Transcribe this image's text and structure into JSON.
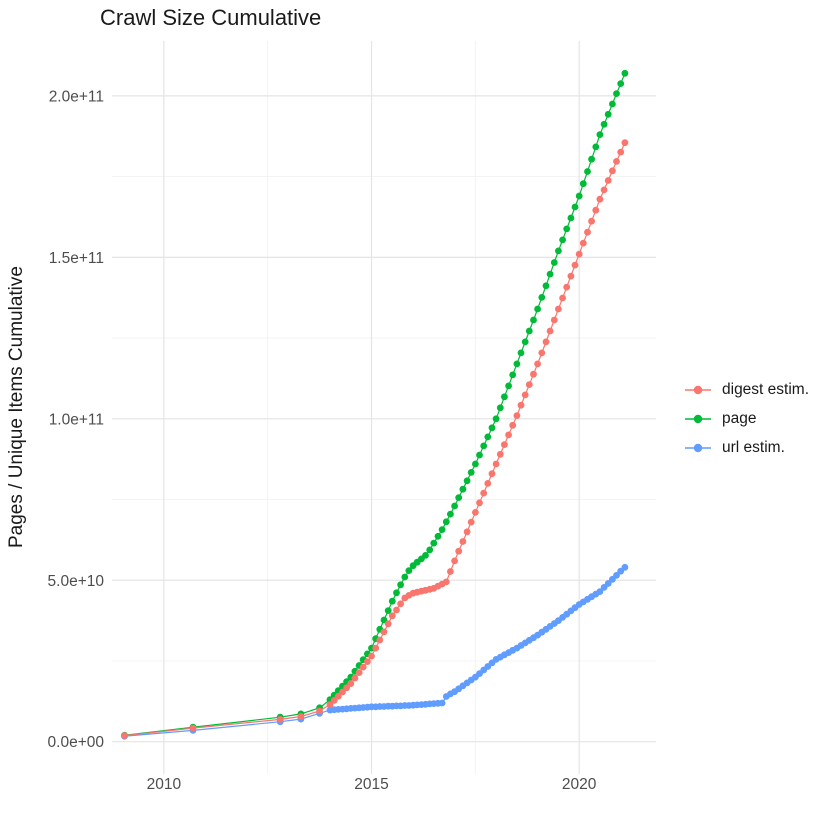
{
  "chart_data": {
    "type": "scatter",
    "title": "Crawl Size Cumulative",
    "xlabel": "",
    "ylabel": "Pages / Unique Items Cumulative",
    "value_unit_multiplier": 1000000000.0,
    "note_units": "y values stored in billions (1e9)",
    "xlim": [
      2008.75,
      2021.85
    ],
    "ylim_billions": [
      -10,
      217
    ],
    "grid": true,
    "legend_position": "right",
    "x_major_ticks": [
      2010,
      2015,
      2020
    ],
    "x_minor_ticks": [
      2012.5,
      2017.5
    ],
    "y_major_ticks": [
      {
        "v": 0,
        "label": "0.0e+00"
      },
      {
        "v": 50,
        "label": "5.0e+10"
      },
      {
        "v": 100,
        "label": "1.0e+11"
      },
      {
        "v": 150,
        "label": "1.5e+11"
      },
      {
        "v": 200,
        "label": "2.0e+11"
      }
    ],
    "y_minor_ticks_billions": [
      25,
      75,
      125,
      175
    ],
    "x": [
      2009.05,
      2010.7,
      2012.8,
      2013.3,
      2013.75,
      2014.0,
      2014.1,
      2014.2,
      2014.3,
      2014.4,
      2014.5,
      2014.6,
      2014.7,
      2014.8,
      2014.9,
      2015.0,
      2015.1,
      2015.2,
      2015.3,
      2015.4,
      2015.5,
      2015.6,
      2015.7,
      2015.8,
      2015.9,
      2016.0,
      2016.1,
      2016.2,
      2016.3,
      2016.4,
      2016.5,
      2016.6,
      2016.7,
      2016.8,
      2016.9,
      2017.0,
      2017.1,
      2017.2,
      2017.3,
      2017.4,
      2017.5,
      2017.6,
      2017.7,
      2017.8,
      2017.9,
      2018.0,
      2018.1,
      2018.2,
      2018.3,
      2018.4,
      2018.5,
      2018.6,
      2018.7,
      2018.8,
      2018.9,
      2019.0,
      2019.1,
      2019.2,
      2019.3,
      2019.4,
      2019.5,
      2019.6,
      2019.7,
      2019.8,
      2019.9,
      2020.0,
      2020.1,
      2020.2,
      2020.3,
      2020.4,
      2020.5,
      2020.6,
      2020.7,
      2020.8,
      2020.9,
      2021.0,
      2021.1
    ],
    "series": [
      {
        "id": "digest-estim",
        "name": "digest estim.",
        "color": "#F8766D",
        "y_billions": [
          1.9,
          4.2,
          6.9,
          7.8,
          9.5,
          11.5,
          12.8,
          14.1,
          15.4,
          16.7,
          18.0,
          19.7,
          21.4,
          23.1,
          24.8,
          26.5,
          29.0,
          31.5,
          34.0,
          36.5,
          39.0,
          40.8,
          42.7,
          44.5,
          45.3,
          46.0,
          46.3,
          46.6,
          46.9,
          47.2,
          47.5,
          48.2,
          48.8,
          49.5,
          52.7,
          56.0,
          59.0,
          62.0,
          65.0,
          68.0,
          71.0,
          74.0,
          77.0,
          80.0,
          83.0,
          86.0,
          89.0,
          92.0,
          95.0,
          98.0,
          101.0,
          104.2,
          107.4,
          110.6,
          113.8,
          117.0,
          120.4,
          123.8,
          127.2,
          130.6,
          134.0,
          137.4,
          140.8,
          144.2,
          147.6,
          151.0,
          154.4,
          157.8,
          161.2,
          164.6,
          168.0,
          170.9,
          173.8,
          176.8,
          179.7,
          182.6,
          185.5
        ]
      },
      {
        "id": "page",
        "name": "page",
        "color": "#00BA38",
        "y_billions": [
          2.0,
          4.5,
          7.6,
          8.6,
          10.5,
          13.0,
          14.4,
          15.8,
          17.2,
          18.6,
          20.0,
          21.8,
          23.6,
          25.4,
          27.2,
          29.0,
          31.9,
          34.8,
          37.7,
          40.6,
          43.5,
          46.1,
          48.6,
          51.0,
          53.0,
          54.5,
          55.6,
          56.6,
          57.7,
          59.4,
          61.5,
          63.6,
          65.7,
          68.1,
          70.5,
          73.0,
          75.6,
          78.2,
          80.8,
          83.4,
          86.0,
          88.8,
          91.6,
          94.4,
          97.2,
          100.0,
          103.4,
          106.8,
          110.2,
          113.6,
          117.0,
          120.4,
          123.8,
          127.2,
          130.6,
          134.0,
          137.6,
          141.2,
          144.8,
          148.4,
          152.0,
          155.4,
          158.8,
          162.2,
          165.6,
          169.0,
          172.8,
          176.6,
          180.4,
          184.2,
          188.0,
          191.2,
          194.3,
          197.5,
          200.7,
          203.8,
          207.0
        ]
      },
      {
        "id": "url-estim",
        "name": "url estim.",
        "color": "#619CFF",
        "y_billions": [
          1.7,
          3.5,
          6.2,
          7.0,
          8.8,
          9.8,
          9.9,
          10.0,
          10.1,
          10.2,
          10.3,
          10.4,
          10.5,
          10.6,
          10.7,
          10.8,
          10.8,
          10.9,
          10.9,
          11.0,
          11.0,
          11.1,
          11.1,
          11.2,
          11.2,
          11.3,
          11.4,
          11.5,
          11.6,
          11.7,
          11.8,
          11.9,
          12.0,
          14.0,
          14.8,
          15.5,
          16.4,
          17.3,
          18.2,
          19.1,
          20.0,
          21.1,
          22.2,
          23.3,
          24.4,
          25.5,
          26.2,
          26.9,
          27.6,
          28.3,
          29.0,
          29.8,
          30.6,
          31.4,
          32.2,
          33.0,
          33.9,
          34.8,
          35.7,
          36.6,
          37.5,
          38.5,
          39.5,
          40.5,
          41.5,
          42.5,
          43.3,
          44.1,
          44.9,
          45.7,
          46.5,
          47.8,
          49.0,
          50.3,
          51.5,
          52.8,
          54.0
        ]
      }
    ]
  },
  "legend": {
    "items": [
      {
        "label": "digest estim."
      },
      {
        "label": "page"
      },
      {
        "label": "url estim."
      }
    ]
  },
  "colors": {
    "digest": "#F8766D",
    "page": "#00BA38",
    "url": "#619CFF",
    "grid_major": "#E4E4E4",
    "grid_minor": "#F0F0F0",
    "axis_text": "#4D4D4D",
    "title_text": "#1A1A1A",
    "background": "#FFFFFF"
  }
}
